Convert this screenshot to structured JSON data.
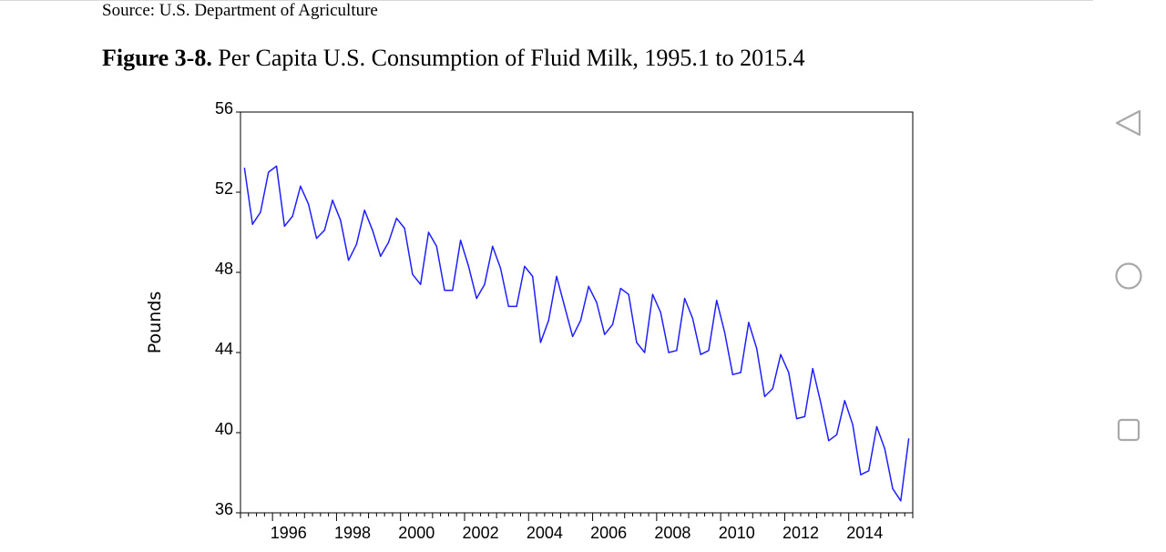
{
  "header": {
    "source": "Source:  U.S. Department of Agriculture",
    "figure_label": "Figure 3-8.",
    "figure_title": "Per Capita U.S. Consumption of Fluid Milk, 1995.1 to 2015.4"
  },
  "nav": {
    "back_icon": "triangle-back-icon",
    "home_icon": "circle-home-icon",
    "recent_icon": "square-recent-icon"
  },
  "chart_data": {
    "type": "line",
    "title": "Per Capita U.S. Consumption of Fluid Milk, 1995.1 to 2015.4",
    "xlabel": "",
    "ylabel": "Pounds",
    "xlim": [
      1995.0,
      2016.0
    ],
    "ylim": [
      36,
      56
    ],
    "yticks": [
      36,
      40,
      44,
      48,
      52,
      56
    ],
    "xticks": [
      1996,
      1998,
      2000,
      2002,
      2004,
      2006,
      2008,
      2010,
      2012,
      2014
    ],
    "line_color": "#1f1fff",
    "series": [
      {
        "name": "Per capita fluid milk consumption",
        "start": 1995.125,
        "step": 0.25,
        "values": [
          53.2,
          50.4,
          51.0,
          53.0,
          53.3,
          50.3,
          50.8,
          52.3,
          51.4,
          49.7,
          50.1,
          51.6,
          50.6,
          48.6,
          49.4,
          51.1,
          50.1,
          48.8,
          49.5,
          50.7,
          50.2,
          47.9,
          47.4,
          50.0,
          49.3,
          47.1,
          47.1,
          49.6,
          48.3,
          46.7,
          47.4,
          49.3,
          48.2,
          46.3,
          46.3,
          48.3,
          47.8,
          44.5,
          45.6,
          47.8,
          46.3,
          44.8,
          45.6,
          47.3,
          46.5,
          44.9,
          45.4,
          47.2,
          46.9,
          44.5,
          44.0,
          46.9,
          46.0,
          44.0,
          44.1,
          46.7,
          45.7,
          43.9,
          44.1,
          46.6,
          45.0,
          42.9,
          43.0,
          45.5,
          44.2,
          41.8,
          42.2,
          43.9,
          43.0,
          40.7,
          40.8,
          43.2,
          41.5,
          39.6,
          39.9,
          41.6,
          40.4,
          37.9,
          38.1,
          40.3,
          39.2,
          37.2,
          36.6,
          39.7
        ]
      }
    ]
  }
}
